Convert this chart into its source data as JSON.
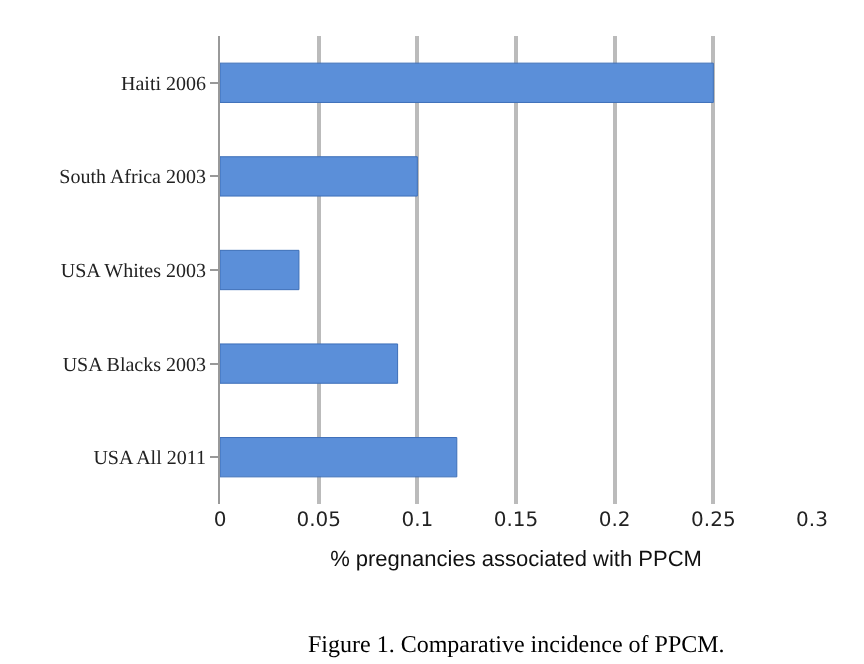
{
  "chart_data": {
    "type": "bar",
    "orientation": "horizontal",
    "categories": [
      "Haiti 2006",
      "South Africa 2003",
      "USA Whites 2003",
      "USA Blacks 2003",
      "USA All 2011"
    ],
    "values": [
      0.25,
      0.1,
      0.04,
      0.09,
      0.12
    ],
    "color": "#5b8fd9",
    "xlabel": "% pregnancies associated with PPCM",
    "xlim": [
      0,
      0.3
    ],
    "xticks": [
      0,
      0.05,
      0.1,
      0.15,
      0.2,
      0.25,
      0.3
    ],
    "grid": "x",
    "annotations": [
      "Figure 1. Comparative incidence of PPCM."
    ]
  }
}
